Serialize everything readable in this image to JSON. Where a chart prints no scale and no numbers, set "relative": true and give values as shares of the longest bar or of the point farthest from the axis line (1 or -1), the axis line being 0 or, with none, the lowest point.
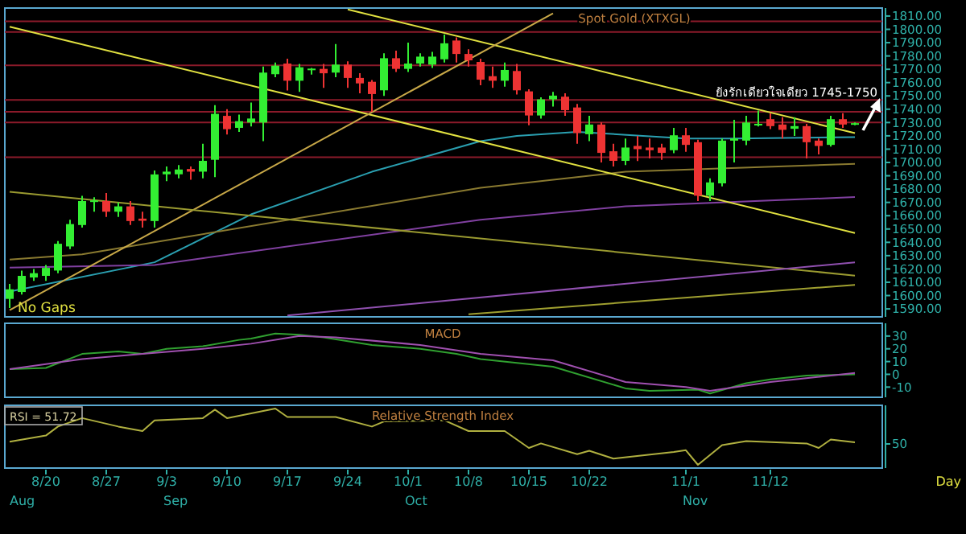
{
  "chart_data": [
    {
      "type": "candlestick",
      "title": "Spot Gold (XTXGL)",
      "tick_labels": "y",
      "ohlc": [
        [
          1597.5,
          1608.7,
          1590.7,
          1604.7
        ],
        [
          1602.7,
          1618.8,
          1600.7,
          1614.8
        ],
        [
          1613.6,
          1620,
          1611,
          1616.8
        ],
        [
          1614.8,
          1623,
          1611,
          1620.8
        ],
        [
          1618.8,
          1640.9,
          1616.8,
          1638.9
        ],
        [
          1636.9,
          1657,
          1634.9,
          1653.7
        ],
        [
          1653,
          1675,
          1651,
          1671
        ],
        [
          1670.6,
          1673.8,
          1663,
          1671.5
        ],
        [
          1671,
          1677,
          1659,
          1663
        ],
        [
          1663,
          1670,
          1659,
          1667
        ],
        [
          1667,
          1671,
          1653,
          1656
        ],
        [
          1657.8,
          1663,
          1651,
          1656.2
        ],
        [
          1656,
          1694,
          1651,
          1691
        ],
        [
          1691.1,
          1697,
          1686,
          1693.1
        ],
        [
          1691.1,
          1698,
          1688,
          1694.7
        ],
        [
          1695.1,
          1697,
          1687,
          1693.1
        ],
        [
          1693.1,
          1714,
          1688,
          1701.2
        ],
        [
          1702,
          1743,
          1689,
          1736.5
        ],
        [
          1735,
          1740,
          1721,
          1725
        ],
        [
          1726,
          1736,
          1723,
          1731
        ],
        [
          1730,
          1745,
          1727,
          1733
        ],
        [
          1730,
          1772,
          1716,
          1767.5
        ],
        [
          1766.3,
          1775,
          1764,
          1772.7
        ],
        [
          1774.3,
          1778,
          1754,
          1761.4
        ],
        [
          1761.4,
          1774,
          1753,
          1771.5
        ],
        [
          1770,
          1771,
          1766,
          1770.5
        ],
        [
          1770.3,
          1774,
          1756,
          1767
        ],
        [
          1767.5,
          1789,
          1764,
          1773.5
        ],
        [
          1773.5,
          1776,
          1756,
          1763.5
        ],
        [
          1763.5,
          1767,
          1752,
          1759.4
        ],
        [
          1760.6,
          1762,
          1738,
          1751.4
        ],
        [
          1754.2,
          1782,
          1750,
          1778.3
        ],
        [
          1778.3,
          1784,
          1768,
          1770.3
        ],
        [
          1770.3,
          1790,
          1768,
          1774.3
        ],
        [
          1774.3,
          1782,
          1772,
          1779.5
        ],
        [
          1773.5,
          1783,
          1771,
          1779.5
        ],
        [
          1777.5,
          1796,
          1775,
          1789.5
        ],
        [
          1791.6,
          1794,
          1775,
          1781.5
        ],
        [
          1781.5,
          1785,
          1772,
          1776.7
        ],
        [
          1775.5,
          1778,
          1758,
          1762.2
        ],
        [
          1764.8,
          1772,
          1756,
          1761.4
        ],
        [
          1761.4,
          1775,
          1757,
          1769.5
        ],
        [
          1768.7,
          1774,
          1751,
          1754.2
        ],
        [
          1753.4,
          1755,
          1728,
          1735.3
        ],
        [
          1735.3,
          1749,
          1733,
          1747.4
        ],
        [
          1747.4,
          1753,
          1742,
          1750.2
        ],
        [
          1749.4,
          1752,
          1735,
          1739.3
        ],
        [
          1741.3,
          1744,
          1714,
          1722.1
        ],
        [
          1721.2,
          1735,
          1716,
          1728.5
        ],
        [
          1728.5,
          1730,
          1700,
          1707.2
        ],
        [
          1708.4,
          1714,
          1697,
          1701.2
        ],
        [
          1701.2,
          1718,
          1698,
          1711.2
        ],
        [
          1712.4,
          1720,
          1701,
          1710
        ],
        [
          1711.2,
          1718,
          1703,
          1709.2
        ],
        [
          1711.2,
          1714,
          1702,
          1707.2
        ],
        [
          1709.2,
          1726,
          1707,
          1720.4
        ],
        [
          1720.4,
          1726,
          1708,
          1713.2
        ],
        [
          1715.2,
          1717,
          1671,
          1675
        ],
        [
          1675,
          1688,
          1671,
          1685
        ],
        [
          1684.3,
          1718,
          1682,
          1716.4
        ],
        [
          1716.4,
          1732,
          1700,
          1718
        ],
        [
          1716.4,
          1735,
          1713,
          1730
        ],
        [
          1728,
          1739,
          1727,
          1729
        ],
        [
          1732.5,
          1737,
          1725,
          1727.3
        ],
        [
          1728.5,
          1734,
          1718,
          1724.5
        ],
        [
          1725.3,
          1734,
          1720,
          1727.3
        ],
        [
          1727.3,
          1729,
          1703,
          1715.2
        ],
        [
          1716.4,
          1718,
          1706,
          1712.4
        ],
        [
          1713.2,
          1735,
          1712,
          1732.5
        ],
        [
          1732.5,
          1737,
          1726,
          1728.5
        ],
        [
          1729.3,
          1730,
          1728,
          1729.5
        ]
      ],
      "series": [
        {
          "type": "line",
          "color": "#2a9fb0",
          "values": [
            1603,
            null,
            null,
            null,
            null,
            null,
            null,
            null,
            null,
            null,
            null,
            null,
            1625,
            null,
            null,
            null,
            null,
            null,
            null,
            null,
            1661,
            null,
            null,
            null,
            null,
            null,
            null,
            null,
            null,
            null,
            1693,
            null,
            null,
            null,
            null,
            null,
            null,
            null,
            null,
            1716,
            null,
            null,
            1720,
            null,
            null,
            null,
            null,
            1723,
            null,
            null,
            null,
            null,
            null,
            null,
            null,
            null,
            1718,
            null,
            null,
            null,
            1718,
            null,
            null,
            null,
            null,
            null,
            null,
            null,
            null,
            null,
            1719
          ]
        },
        {
          "type": "line",
          "color": "#8a7a30",
          "values": [
            1627,
            null,
            null,
            null,
            null,
            null,
            1631,
            null,
            null,
            null,
            null,
            null,
            null,
            null,
            null,
            null,
            null,
            null,
            null,
            null,
            null,
            null,
            null,
            null,
            null,
            null,
            null,
            null,
            null,
            null,
            null,
            null,
            null,
            null,
            null,
            null,
            null,
            null,
            null,
            1681,
            null,
            null,
            null,
            null,
            null,
            null,
            null,
            null,
            null,
            null,
            null,
            1693,
            null,
            null,
            null,
            null,
            null,
            null,
            null,
            null,
            null,
            null,
            null,
            null,
            null,
            null,
            null,
            null,
            null,
            null,
            1699
          ]
        },
        {
          "type": "line",
          "color": "#8040a0",
          "values": [
            1621,
            null,
            null,
            null,
            null,
            null,
            null,
            null,
            null,
            null,
            null,
            null,
            1623,
            null,
            null,
            null,
            null,
            null,
            null,
            null,
            null,
            null,
            null,
            null,
            null,
            null,
            null,
            null,
            null,
            null,
            null,
            null,
            null,
            null,
            null,
            null,
            null,
            null,
            null,
            1657,
            null,
            null,
            null,
            null,
            null,
            null,
            null,
            null,
            null,
            null,
            null,
            1667,
            null,
            null,
            null,
            null,
            null,
            null,
            null,
            null,
            null,
            null,
            null,
            null,
            null,
            null,
            null,
            null,
            null,
            null,
            1674
          ]
        },
        {
          "type": "line",
          "color": "#e0e040",
          "values": [
            1802,
            null,
            null,
            null,
            null,
            null,
            null,
            null,
            null,
            null,
            null,
            null,
            null,
            null,
            null,
            null,
            null,
            null,
            null,
            null,
            null,
            null,
            null,
            null,
            null,
            null,
            null,
            null,
            null,
            null,
            null,
            null,
            null,
            null,
            null,
            null,
            null,
            null,
            null,
            null,
            null,
            null,
            null,
            null,
            null,
            null,
            null,
            null,
            null,
            null,
            null,
            null,
            null,
            null,
            null,
            null,
            null,
            null,
            null,
            null,
            null,
            null,
            null,
            null,
            null,
            null,
            null,
            null,
            null,
            null,
            1647
          ]
        },
        {
          "type": "line",
          "color": "#e0e040",
          "values": [
            null,
            null,
            null,
            null,
            null,
            null,
            null,
            null,
            null,
            null,
            null,
            null,
            null,
            null,
            null,
            null,
            null,
            null,
            null,
            null,
            null,
            null,
            null,
            null,
            null,
            null,
            null,
            null,
            1815,
            null,
            null,
            null,
            null,
            null,
            null,
            null,
            null,
            null,
            null,
            null,
            null,
            null,
            null,
            null,
            null,
            null,
            null,
            null,
            null,
            null,
            null,
            null,
            null,
            null,
            null,
            null,
            null,
            null,
            null,
            null,
            null,
            null,
            null,
            null,
            null,
            null,
            null,
            null,
            null,
            null,
            1722
          ]
        },
        {
          "type": "line",
          "color": "#c8a848",
          "values": [
            1589,
            null,
            null,
            null,
            null,
            null,
            null,
            null,
            null,
            null,
            null,
            null,
            null,
            null,
            null,
            null,
            null,
            null,
            null,
            null,
            null,
            null,
            null,
            null,
            null,
            null,
            null,
            null,
            null,
            null,
            null,
            null,
            null,
            null,
            null,
            null,
            null,
            null,
            null,
            null,
            null,
            null,
            null,
            null,
            null,
            1812,
            null,
            null,
            null,
            null,
            null,
            null,
            null,
            null,
            null,
            null,
            null,
            null,
            null,
            null,
            null,
            null,
            null,
            null,
            null,
            null,
            null,
            null,
            null,
            null,
            null
          ]
        },
        {
          "type": "line",
          "color": "#9a9a30",
          "values": [
            1678,
            null,
            null,
            null,
            null,
            null,
            null,
            null,
            null,
            null,
            null,
            null,
            null,
            null,
            null,
            null,
            null,
            null,
            null,
            null,
            null,
            null,
            null,
            null,
            null,
            null,
            null,
            null,
            null,
            null,
            null,
            null,
            null,
            null,
            null,
            null,
            null,
            null,
            null,
            null,
            null,
            null,
            null,
            null,
            null,
            null,
            null,
            null,
            null,
            null,
            null,
            null,
            null,
            null,
            null,
            null,
            null,
            null,
            null,
            null,
            null,
            null,
            null,
            null,
            null,
            null,
            null,
            null,
            null,
            null,
            1615
          ]
        },
        {
          "type": "line",
          "color": "#9050b0",
          "values": [
            null,
            null,
            null,
            null,
            null,
            null,
            null,
            null,
            null,
            null,
            null,
            null,
            null,
            null,
            null,
            null,
            null,
            null,
            null,
            null,
            null,
            null,
            null,
            1585,
            null,
            null,
            null,
            null,
            null,
            null,
            null,
            null,
            null,
            null,
            null,
            null,
            null,
            null,
            null,
            null,
            null,
            null,
            null,
            null,
            null,
            null,
            null,
            null,
            null,
            null,
            null,
            null,
            null,
            null,
            null,
            null,
            null,
            null,
            null,
            null,
            null,
            null,
            null,
            null,
            null,
            null,
            null,
            null,
            null,
            null,
            1625
          ]
        },
        {
          "type": "line",
          "color": "#a0a030",
          "values": [
            null,
            null,
            null,
            null,
            null,
            null,
            null,
            null,
            null,
            null,
            null,
            null,
            null,
            null,
            null,
            null,
            null,
            null,
            null,
            null,
            null,
            null,
            null,
            null,
            null,
            null,
            null,
            null,
            null,
            null,
            null,
            null,
            null,
            null,
            null,
            null,
            null,
            null,
            1586,
            null,
            null,
            null,
            null,
            null,
            null,
            null,
            null,
            null,
            null,
            null,
            null,
            null,
            null,
            null,
            null,
            null,
            null,
            null,
            null,
            null,
            null,
            null,
            null,
            null,
            null,
            null,
            null,
            null,
            null,
            null,
            1608
          ]
        }
      ],
      "ref_lines": [
        {
          "axis": "y",
          "value": 1806,
          "color": "#8b1a2a"
        },
        {
          "axis": "y",
          "value": 1798,
          "color": "#8b1a2a"
        },
        {
          "axis": "y",
          "value": 1773,
          "color": "#8b1a2a"
        },
        {
          "axis": "y",
          "value": 1747,
          "color": "#8b1a2a"
        },
        {
          "axis": "y",
          "value": 1738,
          "color": "#8b1a2a"
        },
        {
          "axis": "y",
          "value": 1730,
          "color": "#8b1a2a"
        },
        {
          "axis": "y",
          "value": 1704,
          "color": "#8b1a2a"
        }
      ],
      "ylim": [
        1584,
        1816
      ],
      "yticks": [
        {
          "value": 1590,
          "label": "1590.00"
        },
        {
          "value": 1600,
          "label": "1600.00"
        },
        {
          "value": 1610,
          "label": "1610.00"
        },
        {
          "value": 1620,
          "label": "1620.00"
        },
        {
          "value": 1630,
          "label": "1630.00"
        },
        {
          "value": 1640,
          "label": "1640.00"
        },
        {
          "value": 1650,
          "label": "1650.00"
        },
        {
          "value": 1660,
          "label": "1660.00"
        },
        {
          "value": 1670,
          "label": "1670.00"
        },
        {
          "value": 1680,
          "label": "1680.00"
        },
        {
          "value": 1690,
          "label": "1690.00"
        },
        {
          "value": 1700,
          "label": "1700.00"
        },
        {
          "value": 1710,
          "label": "1710.00"
        },
        {
          "value": 1720,
          "label": "1720.00"
        },
        {
          "value": 1730,
          "label": "1730.00"
        },
        {
          "value": 1740,
          "label": "1740.00"
        },
        {
          "value": 1750,
          "label": "1750.00"
        },
        {
          "value": 1760,
          "label": "1760.00"
        },
        {
          "value": 1770,
          "label": "1770.00"
        },
        {
          "value": 1780,
          "label": "1780.00"
        },
        {
          "value": 1790,
          "label": "1790.00"
        },
        {
          "value": 1800,
          "label": "1800.00"
        },
        {
          "value": 1810,
          "label": "1810.00"
        }
      ],
      "annotations": [
        "No Gaps",
        "ยังรักเดียวใจเดียว 1745-1750"
      ]
    },
    {
      "type": "line",
      "title": "MACD",
      "tick_labels": "y",
      "series": [
        {
          "color": "#30a030",
          "values": [
            4,
            null,
            null,
            5,
            null,
            null,
            16,
            null,
            null,
            18,
            null,
            16,
            null,
            20,
            null,
            null,
            22,
            null,
            null,
            27,
            28,
            null,
            32,
            null,
            31,
            null,
            29,
            null,
            null,
            null,
            23,
            null,
            null,
            null,
            20,
            null,
            null,
            16,
            null,
            12,
            null,
            null,
            null,
            null,
            null,
            6,
            null,
            null,
            null,
            null,
            null,
            -11,
            null,
            -13,
            null,
            null,
            null,
            -12,
            -15,
            null,
            null,
            -7,
            null,
            -4,
            null,
            null,
            -1,
            null,
            null,
            null,
            0
          ]
        },
        {
          "color": "#a050b0",
          "values": [
            4,
            null,
            null,
            null,
            null,
            null,
            12,
            null,
            null,
            null,
            null,
            16,
            null,
            null,
            null,
            null,
            20,
            null,
            null,
            null,
            24,
            null,
            null,
            null,
            30,
            null,
            null,
            29,
            null,
            null,
            null,
            null,
            null,
            null,
            23,
            null,
            null,
            null,
            null,
            16,
            null,
            null,
            null,
            null,
            null,
            11,
            null,
            null,
            null,
            null,
            null,
            -6,
            null,
            null,
            null,
            null,
            -10,
            null,
            -13,
            null,
            null,
            null,
            null,
            -6,
            null,
            null,
            null,
            null,
            null,
            null,
            1
          ]
        }
      ],
      "ylim": [
        -18,
        40
      ],
      "yticks": [
        -10,
        0,
        10,
        20,
        30
      ]
    },
    {
      "type": "line",
      "title": "Relative Strength Index",
      "relative": true,
      "categories": [
        null,
        null,
        null,
        "8/20",
        null,
        null,
        null,
        null,
        "8/27",
        null,
        null,
        null,
        null,
        "9/3",
        null,
        null,
        null,
        null,
        "9/10",
        null,
        null,
        null,
        null,
        "9/17",
        null,
        null,
        null,
        null,
        "9/24",
        null,
        null,
        null,
        null,
        "10/1",
        null,
        null,
        null,
        null,
        "10/8",
        null,
        null,
        null,
        null,
        "10/15",
        null,
        null,
        null,
        null,
        "10/22",
        null,
        null,
        null,
        null,
        null,
        null,
        null,
        "11/1",
        null,
        null,
        null,
        null,
        null,
        null,
        "11/12",
        null,
        null,
        null,
        null,
        null,
        null,
        null
      ],
      "series": [
        {
          "color": "#b0b040",
          "values": [
            0.41,
            null,
            null,
            0.52,
            0.68,
            null,
            0.83,
            null,
            null,
            0.68,
            null,
            0.6,
            0.79,
            null,
            null,
            null,
            0.83,
            0.98,
            0.83,
            null,
            null,
            null,
            1,
            0.85,
            null,
            null,
            null,
            0.85,
            null,
            null,
            0.68,
            0.77,
            null,
            null,
            null,
            null,
            0.79,
            null,
            0.6,
            null,
            null,
            0.6,
            null,
            0.3,
            0.38,
            null,
            null,
            0.19,
            0.25,
            null,
            0.11,
            null,
            null,
            null,
            null,
            0.23,
            0.26,
            0,
            null,
            0.35,
            null,
            0.42,
            null,
            null,
            null,
            null,
            0.38,
            0.3,
            0.45,
            null,
            0.4
          ]
        }
      ],
      "annotations": [
        "RSI = 51.72",
        "Day",
        "Aug",
        "Sep",
        "Oct",
        "Nov",
        "50"
      ]
    }
  ]
}
